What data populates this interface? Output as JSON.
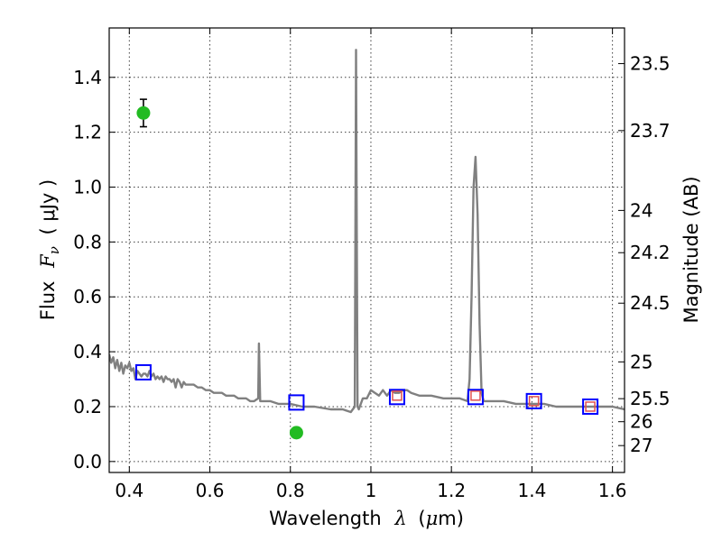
{
  "chart_data": {
    "type": "line",
    "xlabel": {
      "prefix": "Wavelength",
      "symbol": "λ",
      "unit_open": "(",
      "unit_mu": "μ",
      "unit_rest": "m)"
    },
    "ylabel": {
      "prefix": "Flux",
      "symbol": "F",
      "subscript": "ν",
      "unit": "( μJy )"
    },
    "y2label": "Magnitude (AB)",
    "xlim": [
      0.35,
      1.63
    ],
    "ylim": [
      -0.04,
      1.58
    ],
    "x_ticks": [
      "0.4",
      "0.6",
      "0.8",
      "1",
      "1.2",
      "1.4",
      "1.6"
    ],
    "y_ticks": [
      "0.0",
      "0.2",
      "0.4",
      "0.6",
      "0.8",
      "1.0",
      "1.2",
      "1.4"
    ],
    "y2_ticks": [
      {
        "label": "23.5",
        "flux": 1.45
      },
      {
        "label": "23.7",
        "flux": 1.206
      },
      {
        "label": "24",
        "flux": 0.915
      },
      {
        "label": "24.2",
        "flux": 0.761
      },
      {
        "label": "24.5",
        "flux": 0.577
      },
      {
        "label": "25",
        "flux": 0.363
      },
      {
        "label": "25.5",
        "flux": 0.229
      },
      {
        "label": "26",
        "flux": 0.145
      },
      {
        "label": "27",
        "flux": 0.058
      }
    ],
    "grid": true,
    "colors": {
      "spectrum": "#808080",
      "model_box": "#0000ff",
      "model_inner": "#e05050",
      "photometry": "#22bb22",
      "errorbar": "#000000"
    },
    "series": [
      {
        "kind": "spectrum",
        "x": [
          0.35,
          0.355,
          0.36,
          0.365,
          0.37,
          0.375,
          0.38,
          0.385,
          0.39,
          0.395,
          0.4,
          0.405,
          0.41,
          0.415,
          0.42,
          0.425,
          0.43,
          0.435,
          0.44,
          0.445,
          0.45,
          0.455,
          0.46,
          0.465,
          0.47,
          0.475,
          0.48,
          0.485,
          0.49,
          0.495,
          0.5,
          0.505,
          0.51,
          0.515,
          0.52,
          0.525,
          0.53,
          0.535,
          0.54,
          0.55,
          0.56,
          0.57,
          0.58,
          0.59,
          0.6,
          0.61,
          0.62,
          0.63,
          0.64,
          0.65,
          0.66,
          0.67,
          0.68,
          0.69,
          0.7,
          0.71,
          0.72,
          0.722,
          0.725,
          0.728,
          0.73,
          0.75,
          0.77,
          0.8,
          0.83,
          0.86,
          0.9,
          0.93,
          0.95,
          0.96,
          0.963,
          0.965,
          0.967,
          0.97,
          0.975,
          0.98,
          0.99,
          1.0,
          1.01,
          1.02,
          1.03,
          1.04,
          1.05,
          1.06,
          1.07,
          1.08,
          1.09,
          1.1,
          1.12,
          1.15,
          1.18,
          1.2,
          1.22,
          1.24,
          1.245,
          1.25,
          1.255,
          1.26,
          1.265,
          1.27,
          1.275,
          1.28,
          1.3,
          1.33,
          1.36,
          1.4,
          1.43,
          1.46,
          1.5,
          1.53,
          1.56,
          1.6,
          1.63
        ],
        "y": [
          0.39,
          0.36,
          0.38,
          0.34,
          0.37,
          0.33,
          0.36,
          0.32,
          0.35,
          0.34,
          0.36,
          0.33,
          0.34,
          0.3,
          0.33,
          0.32,
          0.31,
          0.32,
          0.32,
          0.31,
          0.33,
          0.31,
          0.32,
          0.3,
          0.31,
          0.3,
          0.31,
          0.29,
          0.31,
          0.3,
          0.3,
          0.29,
          0.3,
          0.27,
          0.3,
          0.29,
          0.27,
          0.29,
          0.28,
          0.28,
          0.28,
          0.27,
          0.27,
          0.26,
          0.26,
          0.25,
          0.25,
          0.25,
          0.24,
          0.24,
          0.24,
          0.23,
          0.23,
          0.23,
          0.22,
          0.22,
          0.23,
          0.43,
          0.22,
          0.22,
          0.22,
          0.22,
          0.21,
          0.21,
          0.2,
          0.2,
          0.19,
          0.19,
          0.18,
          0.2,
          1.5,
          0.85,
          0.2,
          0.19,
          0.21,
          0.23,
          0.23,
          0.26,
          0.25,
          0.24,
          0.26,
          0.24,
          0.26,
          0.25,
          0.25,
          0.26,
          0.26,
          0.25,
          0.24,
          0.24,
          0.23,
          0.23,
          0.23,
          0.22,
          0.3,
          0.6,
          1.0,
          1.11,
          0.9,
          0.5,
          0.25,
          0.22,
          0.22,
          0.22,
          0.21,
          0.21,
          0.21,
          0.2,
          0.2,
          0.2,
          0.2,
          0.2,
          0.19
        ]
      },
      {
        "kind": "model_photometry",
        "x": [
          0.435,
          0.815,
          1.065,
          1.26,
          1.405,
          1.545
        ],
        "y": [
          0.325,
          0.215,
          0.235,
          0.235,
          0.22,
          0.2
        ]
      },
      {
        "kind": "inner_markers",
        "x": [
          1.065,
          1.26,
          1.405,
          1.545
        ],
        "y": [
          0.24,
          0.24,
          0.22,
          0.2
        ]
      },
      {
        "kind": "observed_photometry",
        "x": [
          0.435,
          0.815
        ],
        "y": [
          1.27,
          0.105
        ],
        "yerr": [
          0.05,
          0.018
        ]
      }
    ]
  }
}
